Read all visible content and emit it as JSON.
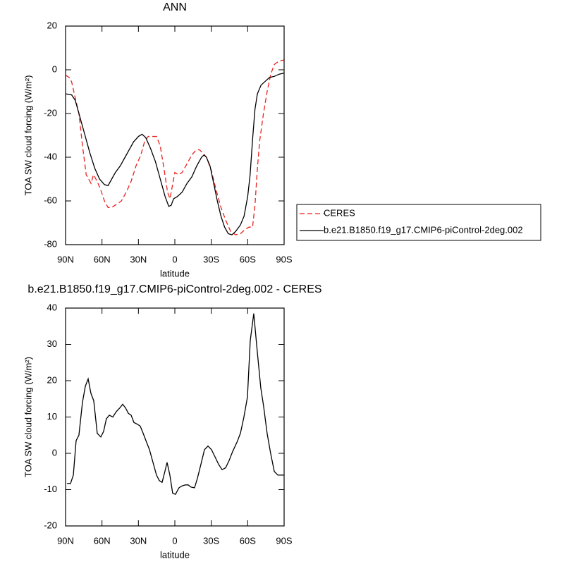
{
  "chart_data": [
    {
      "type": "line",
      "title": "ANN",
      "xlabel": "latitude",
      "ylabel": "TOA SW cloud forcing (W/m²)",
      "xlim": [
        90,
        -90
      ],
      "ylim": [
        -80,
        20
      ],
      "xticks": [
        {
          "value": 90,
          "label": "90N"
        },
        {
          "value": 60,
          "label": "60N"
        },
        {
          "value": 30,
          "label": "30N"
        },
        0,
        {
          "value": -30,
          "label": "30S"
        },
        {
          "value": -60,
          "label": "60S"
        },
        {
          "value": -90,
          "label": "90S"
        }
      ],
      "yticks": [
        -80,
        -60,
        -40,
        -20,
        0,
        20
      ],
      "legend": "right",
      "series": [
        {
          "name": "CERES",
          "color": "#e8221c",
          "line_style": "dashed",
          "x": [
            90,
            87,
            85,
            82,
            79,
            76,
            73,
            71,
            69,
            67,
            64,
            61,
            58,
            55,
            52,
            48,
            44,
            40,
            36,
            32,
            28,
            25,
            22,
            18,
            15,
            12,
            9,
            6,
            4,
            2,
            0,
            -3,
            -6,
            -10,
            -14,
            -17,
            -20,
            -23,
            -26,
            -30,
            -34,
            -38,
            -42,
            -46,
            -50,
            -54,
            -58,
            -61,
            -64,
            -66,
            -68,
            -70,
            -73,
            -76,
            -79,
            -82,
            -86,
            -90
          ],
          "values": [
            -2.5,
            -3.5,
            -5.5,
            -13,
            -20,
            -35,
            -48,
            -50,
            -52,
            -48,
            -51,
            -55,
            -60,
            -63,
            -63,
            -61.5,
            -60,
            -56,
            -51,
            -44,
            -39,
            -33,
            -30.5,
            -30.5,
            -30.5,
            -35,
            -45,
            -56,
            -59,
            -53,
            -47,
            -48,
            -47,
            -43,
            -39,
            -37,
            -36.5,
            -38,
            -40,
            -46,
            -55,
            -63,
            -69,
            -74,
            -75.5,
            -75,
            -73,
            -72,
            -72,
            -62,
            -45,
            -32,
            -20,
            -10,
            -2,
            2.5,
            4,
            4.5
          ]
        },
        {
          "name": "b.e21.B1850.f19_g17.CMIP6-piControl-2deg.002",
          "color": "#000000",
          "line_style": "solid",
          "x": [
            90,
            85,
            82,
            78,
            74,
            70,
            66,
            62,
            58,
            55,
            52,
            49,
            45,
            41,
            37,
            34,
            30,
            27,
            24,
            20,
            16,
            12,
            8,
            5,
            3,
            1,
            -2,
            -6,
            -10,
            -14,
            -18,
            -22,
            -24,
            -26,
            -29,
            -32,
            -35,
            -38,
            -41,
            -44,
            -47,
            -50,
            -54,
            -57,
            -60,
            -62,
            -64,
            -66,
            -68,
            -71,
            -74,
            -78,
            -82,
            -86,
            -90
          ],
          "values": [
            -11,
            -11.5,
            -14,
            -22,
            -30,
            -38,
            -45,
            -50,
            -52.5,
            -53,
            -50,
            -47,
            -44,
            -40,
            -36,
            -33,
            -30.5,
            -29.5,
            -31,
            -36,
            -42,
            -50,
            -58,
            -62.5,
            -62,
            -59,
            -58,
            -56,
            -52,
            -49,
            -44,
            -40,
            -39,
            -40,
            -44,
            -52,
            -60,
            -67,
            -72,
            -75,
            -75.5,
            -74,
            -71,
            -67,
            -58,
            -48,
            -32,
            -18,
            -11,
            -7,
            -5.5,
            -3.5,
            -3,
            -2,
            -1.5
          ]
        }
      ]
    },
    {
      "type": "line",
      "title": "b.e21.B1850.f19_g17.CMIP6-piControl-2deg.002 - CERES",
      "xlabel": "latitude",
      "ylabel": "TOA SW cloud forcing (W/m²)",
      "xlim": [
        90,
        -90
      ],
      "ylim": [
        -20,
        40
      ],
      "xticks": [
        {
          "value": 90,
          "label": "90N"
        },
        {
          "value": 60,
          "label": "60N"
        },
        {
          "value": 30,
          "label": "30N"
        },
        0,
        {
          "value": -30,
          "label": "30S"
        },
        {
          "value": -60,
          "label": "60S"
        },
        {
          "value": -90,
          "label": "90S"
        }
      ],
      "yticks": [
        -20,
        -10,
        0,
        10,
        20,
        30,
        40
      ],
      "series": [
        {
          "color": "#000000",
          "line_style": "solid",
          "x": [
            88.8,
            85.9,
            83.6,
            81.3,
            79,
            76.1,
            73.7,
            71.4,
            69.1,
            66.8,
            63.9,
            61,
            58.7,
            56.4,
            54,
            51.1,
            48.2,
            45.3,
            43,
            40.6,
            38.3,
            36,
            33.7,
            30.8,
            28.5,
            26.1,
            23.8,
            20.9,
            18,
            15.1,
            12.8,
            10.5,
            8.2,
            6.4,
            4.1,
            1.8,
            -0.5,
            -3.4,
            -5.8,
            -8.7,
            -11,
            -13.3,
            -16.2,
            -18.5,
            -21.5,
            -24.4,
            -27.3,
            -30.2,
            -33.1,
            -36,
            -38.9,
            -41.8,
            -44.7,
            -47.6,
            -51.1,
            -54,
            -56.9,
            -59.8,
            -62.1,
            -65,
            -67.9,
            -70.8,
            -73.1,
            -76,
            -78.9,
            -81.9,
            -84.8,
            -87.7,
            -90
          ],
          "values": [
            -8.3,
            -8.3,
            -6,
            3.5,
            5,
            14,
            18.5,
            20.5,
            16.5,
            14.5,
            5.5,
            4.5,
            6,
            9.5,
            10.5,
            10,
            11.5,
            12.5,
            13.5,
            12.5,
            11,
            10.5,
            8.5,
            8,
            7.5,
            5.5,
            3.5,
            1,
            -2.5,
            -6,
            -7.5,
            -8,
            -5,
            -2.5,
            -6,
            -11,
            -11.3,
            -9.5,
            -9,
            -8.7,
            -8.7,
            -9.3,
            -9.5,
            -7,
            -3,
            1,
            2,
            1,
            -1,
            -3,
            -4.5,
            -4,
            -2,
            0.5,
            3,
            5.5,
            10,
            15.5,
            31,
            38.5,
            28,
            18,
            13,
            5.5,
            0,
            -5,
            -6,
            -6,
            -6
          ]
        }
      ]
    }
  ]
}
